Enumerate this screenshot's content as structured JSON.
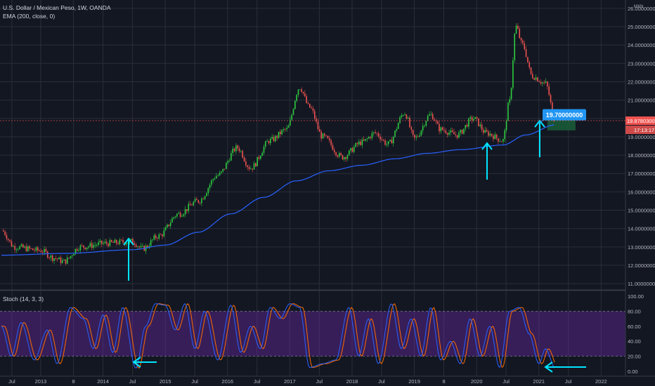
{
  "header": {
    "symbol_title": "U.S. Dollar / Mexican Peso, 1W, OANDA",
    "ema_label": "EMA (200, close, 0)",
    "stoch_label": "Stoch (14, 3, 3)",
    "currency": "MXN"
  },
  "price_tags": {
    "last_price": "19.87803000",
    "countdown": "17:13:17",
    "target_callout": "19.70000000"
  },
  "colors": {
    "background": "#131722",
    "grid": "#2a2e39",
    "up": "#26a69a",
    "up_candle": "#2ecc40",
    "down": "#ef5350",
    "ema": "#2962ff",
    "stoch_k": "#2962ff",
    "stoch_d": "#ff6d00",
    "stoch_band": "#7b2cbf",
    "arrows": "#00e5ff",
    "callout": "#2196f3",
    "target_box": "#1b5e3a"
  },
  "chart_data": [
    {
      "type": "candlestick",
      "title": "U.S. Dollar / Mexican Peso, 1W, OANDA",
      "y_axis_ticks": [
        "11.00000000",
        "12.00000000",
        "13.00000000",
        "14.00000000",
        "15.00000000",
        "16.00000000",
        "17.00000000",
        "18.00000000",
        "19.00000000",
        "20.00000000",
        "21.00000000",
        "22.00000000",
        "23.00000000",
        "24.00000000",
        "25.00000000",
        "26.00000000"
      ],
      "ylim": [
        10.7,
        26.3
      ],
      "x_axis_ticks": [
        "Jul",
        "2013",
        "8",
        "2014",
        "Jul",
        "2015",
        "Jul",
        "2016",
        "Jul",
        "2017",
        "Jul",
        "2018",
        "Jul",
        "2019",
        "8",
        "2020",
        "Jul",
        "2021",
        "Jul",
        "2022"
      ],
      "price_path_anchors": [
        {
          "t": 0.0,
          "price": 13.9
        },
        {
          "t": 2.0,
          "price": 13.0
        },
        {
          "t": 6.0,
          "price": 12.8
        },
        {
          "t": 8.0,
          "price": 12.4
        },
        {
          "t": 9.5,
          "price": 12.2
        },
        {
          "t": 12.0,
          "price": 13.0
        },
        {
          "t": 16.0,
          "price": 13.2
        },
        {
          "t": 20.0,
          "price": 13.3
        },
        {
          "t": 21.5,
          "price": 12.9
        },
        {
          "t": 24.0,
          "price": 13.6
        },
        {
          "t": 27.0,
          "price": 14.8
        },
        {
          "t": 30.0,
          "price": 15.5
        },
        {
          "t": 33.0,
          "price": 16.9
        },
        {
          "t": 36.0,
          "price": 18.4
        },
        {
          "t": 38.0,
          "price": 17.3
        },
        {
          "t": 41.0,
          "price": 18.8
        },
        {
          "t": 43.5,
          "price": 19.4
        },
        {
          "t": 45.5,
          "price": 21.7
        },
        {
          "t": 47.0,
          "price": 20.6
        },
        {
          "t": 49.0,
          "price": 19.0
        },
        {
          "t": 52.0,
          "price": 17.9
        },
        {
          "t": 55.0,
          "price": 18.7
        },
        {
          "t": 57.0,
          "price": 19.2
        },
        {
          "t": 59.0,
          "price": 18.6
        },
        {
          "t": 61.5,
          "price": 20.3
        },
        {
          "t": 63.0,
          "price": 18.9
        },
        {
          "t": 65.5,
          "price": 20.2
        },
        {
          "t": 67.0,
          "price": 19.4
        },
        {
          "t": 69.5,
          "price": 19.1
        },
        {
          "t": 72.0,
          "price": 20.0
        },
        {
          "t": 74.0,
          "price": 19.2
        },
        {
          "t": 76.5,
          "price": 18.8
        },
        {
          "t": 77.5,
          "price": 20.9
        },
        {
          "t": 78.5,
          "price": 25.0
        },
        {
          "t": 79.5,
          "price": 24.0
        },
        {
          "t": 81.0,
          "price": 22.3
        },
        {
          "t": 83.0,
          "price": 21.9
        },
        {
          "t": 84.5,
          "price": 19.9
        }
      ],
      "ema_200": [
        {
          "t": 0.0,
          "price": 12.55
        },
        {
          "t": 10.0,
          "price": 12.65
        },
        {
          "t": 20.0,
          "price": 12.85
        },
        {
          "t": 25.0,
          "price": 13.1
        },
        {
          "t": 30.0,
          "price": 13.8
        },
        {
          "t": 35.0,
          "price": 14.8
        },
        {
          "t": 40.0,
          "price": 15.7
        },
        {
          "t": 45.0,
          "price": 16.6
        },
        {
          "t": 50.0,
          "price": 17.15
        },
        {
          "t": 55.0,
          "price": 17.45
        },
        {
          "t": 60.0,
          "price": 17.8
        },
        {
          "t": 65.0,
          "price": 18.1
        },
        {
          "t": 70.0,
          "price": 18.3
        },
        {
          "t": 76.5,
          "price": 18.55
        },
        {
          "t": 80.0,
          "price": 19.1
        },
        {
          "t": 84.5,
          "price": 19.65
        }
      ]
    },
    {
      "type": "line",
      "title": "Stoch (14, 3, 3)",
      "y_axis_ticks": [
        "0.00",
        "20.00",
        "40.00",
        "60.00",
        "80.00",
        "100.00"
      ],
      "ylim": [
        0,
        100
      ],
      "band": [
        20,
        80
      ],
      "series_anchors": [
        {
          "t": 0.0,
          "k": 60
        },
        {
          "t": 1.5,
          "k": 20
        },
        {
          "t": 3.0,
          "k": 65
        },
        {
          "t": 5.0,
          "k": 15
        },
        {
          "t": 7.0,
          "k": 55
        },
        {
          "t": 8.5,
          "k": 10
        },
        {
          "t": 10.5,
          "k": 85
        },
        {
          "t": 12.5,
          "k": 70
        },
        {
          "t": 14.0,
          "k": 30
        },
        {
          "t": 15.5,
          "k": 75
        },
        {
          "t": 17.0,
          "k": 25
        },
        {
          "t": 18.5,
          "k": 85
        },
        {
          "t": 20.5,
          "k": 4
        },
        {
          "t": 22.0,
          "k": 60
        },
        {
          "t": 23.5,
          "k": 90
        },
        {
          "t": 25.0,
          "k": 88
        },
        {
          "t": 26.5,
          "k": 55
        },
        {
          "t": 28.0,
          "k": 90
        },
        {
          "t": 29.5,
          "k": 30
        },
        {
          "t": 31.0,
          "k": 80
        },
        {
          "t": 33.0,
          "k": 15
        },
        {
          "t": 35.0,
          "k": 88
        },
        {
          "t": 36.5,
          "k": 25
        },
        {
          "t": 38.0,
          "k": 60
        },
        {
          "t": 39.5,
          "k": 30
        },
        {
          "t": 41.0,
          "k": 85
        },
        {
          "t": 42.5,
          "k": 70
        },
        {
          "t": 44.0,
          "k": 90
        },
        {
          "t": 45.5,
          "k": 85
        },
        {
          "t": 47.0,
          "k": 5
        },
        {
          "t": 49.0,
          "k": 10
        },
        {
          "t": 51.0,
          "k": 15
        },
        {
          "t": 53.0,
          "k": 85
        },
        {
          "t": 54.5,
          "k": 20
        },
        {
          "t": 56.0,
          "k": 70
        },
        {
          "t": 57.5,
          "k": 10
        },
        {
          "t": 59.5,
          "k": 90
        },
        {
          "t": 61.0,
          "k": 30
        },
        {
          "t": 62.5,
          "k": 70
        },
        {
          "t": 64.0,
          "k": 20
        },
        {
          "t": 65.5,
          "k": 85
        },
        {
          "t": 67.0,
          "k": 15
        },
        {
          "t": 68.5,
          "k": 40
        },
        {
          "t": 70.0,
          "k": 10
        },
        {
          "t": 71.5,
          "k": 70
        },
        {
          "t": 73.0,
          "k": 20
        },
        {
          "t": 74.5,
          "k": 60
        },
        {
          "t": 76.0,
          "k": 5
        },
        {
          "t": 77.5,
          "k": 80
        },
        {
          "t": 79.0,
          "k": 85
        },
        {
          "t": 80.5,
          "k": 50
        },
        {
          "t": 82.0,
          "k": 10
        },
        {
          "t": 83.0,
          "k": 30
        },
        {
          "t": 84.5,
          "k": 4
        }
      ]
    }
  ]
}
